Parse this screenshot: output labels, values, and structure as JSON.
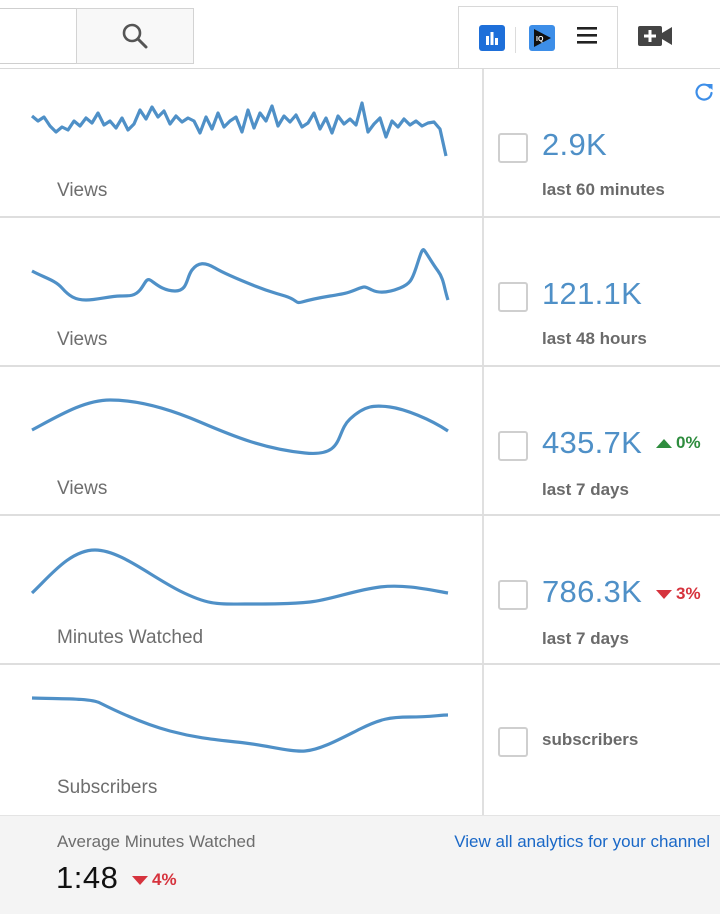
{
  "header": {
    "search": {
      "value": "",
      "icon": "search-icon"
    },
    "extensions": [
      {
        "name": "analytics-extension",
        "icon": "bar-chart-icon",
        "color": "#1e6fd9"
      },
      {
        "name": "iq-extension",
        "icon": "iq-play-icon",
        "color": "#3d8ee8"
      }
    ],
    "menu_icon": "hamburger-icon",
    "upload_icon": "video-add-icon"
  },
  "panel": {
    "refresh_icon": "refresh-icon",
    "accent": "#4f90c7",
    "rows": [
      {
        "label": "Views",
        "value": "2.9K",
        "period": "last 60 minutes",
        "change": null
      },
      {
        "label": "Views",
        "value": "121.1K",
        "period": "last 48 hours",
        "change": null
      },
      {
        "label": "Views",
        "value": "435.7K",
        "period": "last 7 days",
        "change": {
          "direction": "up",
          "text": "0%",
          "color": "#2e8c3e"
        }
      },
      {
        "label": "Minutes Watched",
        "value": "786.3K",
        "period": "last 7 days",
        "change": {
          "direction": "down",
          "text": "3%",
          "color": "#d6333d"
        }
      },
      {
        "label": "Subscribers",
        "value": "",
        "period": "subscribers",
        "change": null
      }
    ]
  },
  "footer": {
    "avg_label": "Average Minutes Watched",
    "avg_value": "1:48",
    "avg_change": {
      "direction": "down",
      "text": "4%",
      "color": "#d6333d"
    },
    "view_all_link": "View all analytics for your channel"
  }
}
